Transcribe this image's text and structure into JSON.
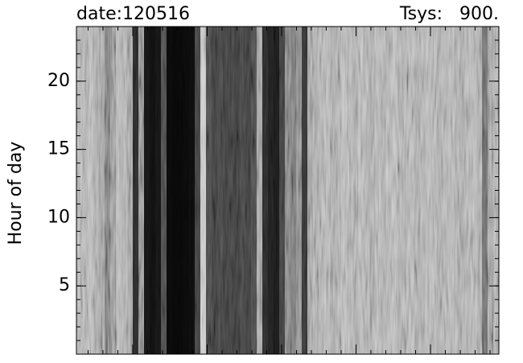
{
  "chart_data": {
    "type": "heatmap",
    "title": "date:120516",
    "subtitle": "Tsys:   900.",
    "y_label": "Hour of day",
    "ylim": [
      0,
      24
    ],
    "yticks": [
      5,
      10,
      15,
      20
    ],
    "values": [
      170,
      165,
      175,
      160,
      150,
      115,
      140,
      170,
      165,
      150,
      40,
      130,
      20,
      15,
      20,
      70,
      10,
      8,
      8,
      10,
      12,
      60,
      190,
      70,
      60,
      65,
      60,
      62,
      58,
      65,
      60,
      70,
      150,
      40,
      30,
      25,
      60,
      120,
      110,
      125,
      50,
      150,
      160,
      165,
      170,
      158,
      162,
      175,
      168,
      160,
      172,
      165,
      158,
      170,
      163,
      168,
      175,
      160,
      166,
      170,
      158,
      164,
      172,
      168,
      160,
      165,
      170,
      162,
      158,
      166,
      172,
      160,
      100,
      150,
      165
    ]
  }
}
